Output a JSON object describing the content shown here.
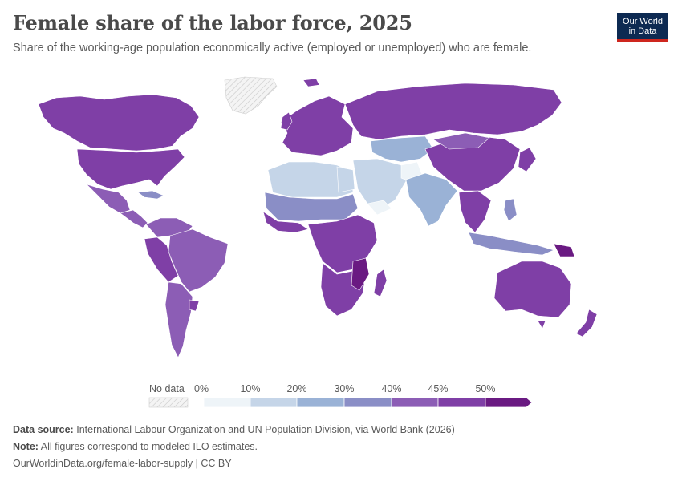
{
  "header": {
    "title": "Female share of the labor force, 2025",
    "subtitle": "Share of the working-age population economically active (employed or unemployed) who are female."
  },
  "logo": {
    "line1": "Our World",
    "line2": "in Data"
  },
  "legend": {
    "no_data_label": "No data",
    "bins": [
      {
        "label": "0%",
        "color": "#eef4f8"
      },
      {
        "label": "10%",
        "color": "#c5d5e8"
      },
      {
        "label": "20%",
        "color": "#9ab2d6"
      },
      {
        "label": "30%",
        "color": "#8a8ec6"
      },
      {
        "label": "40%",
        "color": "#8c5db5"
      },
      {
        "label": "45%",
        "color": "#7f3fa6"
      },
      {
        "label": "50%",
        "color": "#6a1a82"
      }
    ]
  },
  "footer": {
    "source_label": "Data source:",
    "source_text": "International Labour Organization and UN Population Division, via World Bank (2026)",
    "note_label": "Note:",
    "note_text": "All figures correspond to modeled ILO estimates.",
    "link": "OurWorldinData.org/female-labor-supply | CC BY"
  },
  "colors": {
    "no_data": "#f2f2f2",
    "bin_0_10": "#eef4f8",
    "bin_10_20": "#c5d5e8",
    "bin_20_30": "#9ab2d6",
    "bin_30_40": "#8a8ec6",
    "bin_40_45": "#8c5db5",
    "bin_45_50": "#7f3fa6",
    "bin_50_plus": "#6a1a82"
  }
}
